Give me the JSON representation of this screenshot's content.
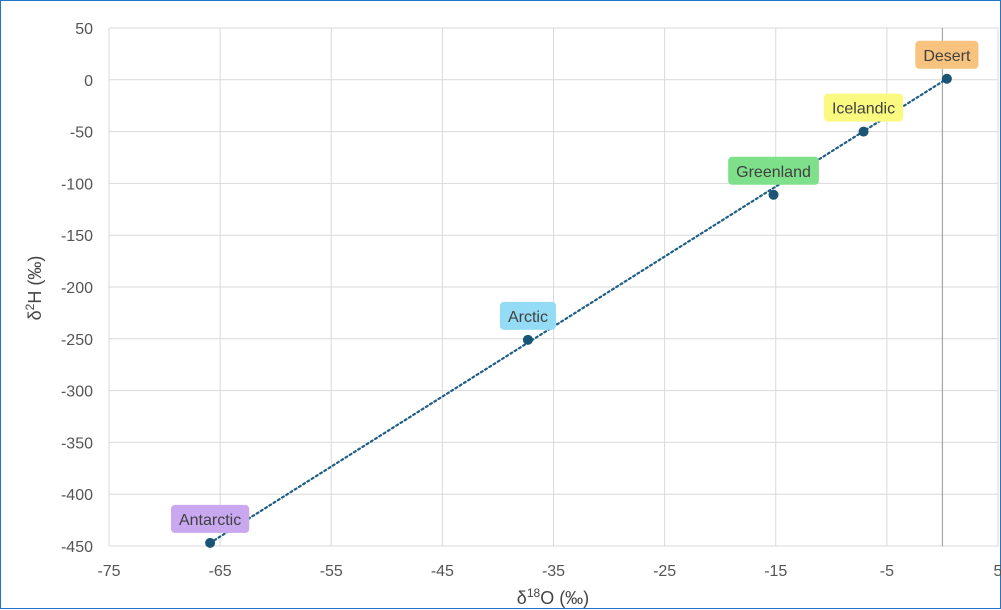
{
  "chart_data": {
    "type": "scatter",
    "xlim": [
      -75,
      5
    ],
    "ylim": [
      -450,
      50
    ],
    "x_ticks": [
      -75,
      -65,
      -55,
      -45,
      -35,
      -25,
      -15,
      -5,
      5
    ],
    "y_ticks": [
      50,
      0,
      -50,
      -100,
      -150,
      -200,
      -250,
      -300,
      -350,
      -400,
      -450
    ],
    "xlabel": "δ18O (‰)",
    "ylabel": "δ2H (‰)",
    "grid": true,
    "points": [
      {
        "label": "Antarctic",
        "x": -65.9,
        "y": -447,
        "color": "#c9a8f0"
      },
      {
        "label": "Arctic",
        "x": -37.3,
        "y": -251,
        "color": "#94dcf5"
      },
      {
        "label": "Greenland",
        "x": -15.2,
        "y": -111,
        "color": "#7ee08a"
      },
      {
        "label": "Icelandic",
        "x": -7.1,
        "y": -50,
        "color": "#fafa80"
      },
      {
        "label": "Desert",
        "x": 0.4,
        "y": 1,
        "color": "#f8c37e"
      }
    ],
    "trendline": {
      "style": "dotted",
      "color": "#1f5f86",
      "from": [
        -65.9,
        -447
      ],
      "to": [
        0.4,
        1
      ]
    },
    "marker_color": "#1a5577",
    "vertical_reference_line_x": 0
  }
}
